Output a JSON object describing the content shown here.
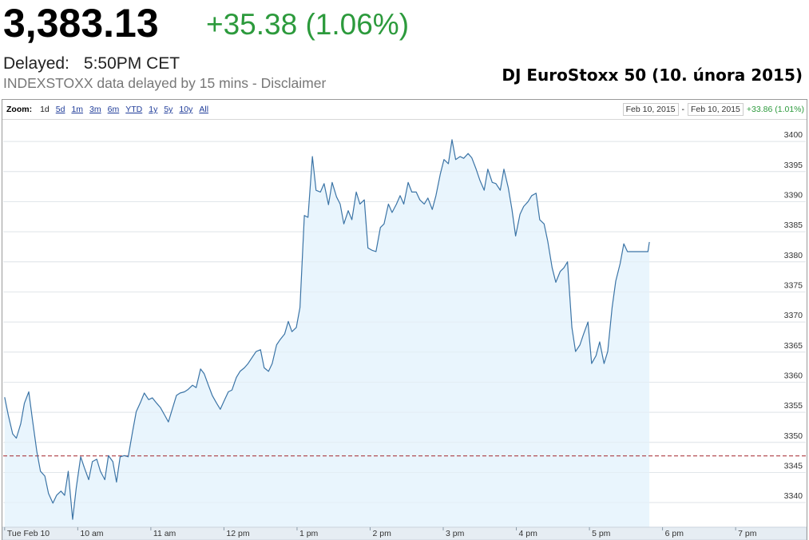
{
  "ui": {
    "price": "3,383.13",
    "change": "+35.38 (1.06%)",
    "delayed_label": "Delayed:",
    "delayed_time": "5:50PM CET",
    "disclaimer": "INDEXSTOXX data delayed by 15 mins - Disclaimer",
    "zoom_label": "Zoom:",
    "zoom_options": [
      "1d",
      "5d",
      "1m",
      "3m",
      "6m",
      "YTD",
      "1y",
      "5y",
      "10y",
      "All"
    ],
    "range_start": "Feb 10, 2015",
    "range_sep": "-",
    "range_end": "Feb 10, 2015",
    "range_change": "+33.86 (1.01%)"
  },
  "chart_data": {
    "type": "line",
    "title": "DJ EuroStoxx 50 (10. února 2015)",
    "color": "#3b74a6",
    "fill_color": "#e9f5fd",
    "reference_line": 3347.75,
    "reference_color": "#a3242c",
    "grid": true,
    "xlim": [
      8.98,
      19.96
    ],
    "xticks": [
      {
        "value": 9,
        "label": "Tue Feb 10"
      },
      {
        "value": 10,
        "label": "10 am"
      },
      {
        "value": 11,
        "label": "11 am"
      },
      {
        "value": 12,
        "label": "12 pm"
      },
      {
        "value": 13,
        "label": "1 pm"
      },
      {
        "value": 14,
        "label": "2 pm"
      },
      {
        "value": 15,
        "label": "3 pm"
      },
      {
        "value": 16,
        "label": "4 pm"
      },
      {
        "value": 17,
        "label": "5 pm"
      },
      {
        "value": 18,
        "label": "6 pm"
      },
      {
        "value": 19,
        "label": "7 pm"
      }
    ],
    "ylim": [
      3335.9,
      3403.6
    ],
    "yticks": [
      3340,
      3345,
      3350,
      3355,
      3360,
      3365,
      3370,
      3375,
      3380,
      3385,
      3390,
      3395,
      3400
    ],
    "x": [
      9.0,
      9.05,
      9.11,
      9.16,
      9.22,
      9.27,
      9.33,
      9.38,
      9.44,
      9.49,
      9.55,
      9.6,
      9.66,
      9.71,
      9.77,
      9.82,
      9.87,
      9.93,
      9.98,
      10.04,
      10.09,
      10.15,
      10.2,
      10.26,
      10.31,
      10.37,
      10.42,
      10.48,
      10.53,
      10.58,
      10.64,
      10.69,
      10.75,
      10.8,
      10.86,
      10.91,
      10.97,
      11.02,
      11.08,
      11.13,
      11.19,
      11.24,
      11.3,
      11.35,
      11.4,
      11.46,
      11.51,
      11.57,
      11.62,
      11.68,
      11.73,
      11.79,
      11.84,
      11.9,
      11.95,
      12.01,
      12.06,
      12.11,
      12.17,
      12.22,
      12.28,
      12.33,
      12.39,
      12.44,
      12.5,
      12.55,
      12.61,
      12.66,
      12.72,
      12.77,
      12.83,
      12.88,
      12.93,
      12.99,
      13.04,
      13.1,
      13.15,
      13.21,
      13.26,
      13.32,
      13.37,
      13.43,
      13.48,
      13.54,
      13.59,
      13.64,
      13.7,
      13.75,
      13.81,
      13.86,
      13.92,
      13.97,
      14.03,
      14.08,
      14.14,
      14.19,
      14.25,
      14.3,
      14.36,
      14.41,
      14.46,
      14.52,
      14.57,
      14.63,
      14.68,
      14.74,
      14.79,
      14.85,
      14.9,
      14.96,
      15.01,
      15.07,
      15.12,
      15.17,
      15.23,
      15.28,
      15.34,
      15.39,
      15.45,
      15.5,
      15.56,
      15.61,
      15.67,
      15.72,
      15.78,
      15.83,
      15.89,
      15.94,
      15.99,
      16.05,
      16.1,
      16.16,
      16.21,
      16.27,
      16.32,
      16.38,
      16.43,
      16.49,
      16.54,
      16.6,
      16.65,
      16.7,
      16.76,
      16.81,
      16.87,
      16.92,
      16.98,
      17.03,
      17.09,
      17.14,
      17.2,
      17.25,
      17.31,
      17.36,
      17.42,
      17.47,
      17.52,
      17.58,
      17.63,
      17.69,
      17.74,
      17.8,
      17.82
    ],
    "values": [
      3357.5,
      3354.5,
      3351.4,
      3350.7,
      3353.1,
      3356.5,
      3358.4,
      3353.8,
      3348.5,
      3345.2,
      3344.4,
      3341.5,
      3339.9,
      3341.2,
      3341.9,
      3341.2,
      3345.2,
      3337.2,
      3342.5,
      3347.6,
      3345.8,
      3343.8,
      3346.8,
      3347.2,
      3345.2,
      3343.8,
      3347.8,
      3346.8,
      3343.4,
      3347.6,
      3347.8,
      3347.6,
      3351.8,
      3355.1,
      3356.7,
      3358.2,
      3357.1,
      3357.4,
      3356.5,
      3355.8,
      3354.5,
      3353.4,
      3355.8,
      3357.8,
      3358.2,
      3358.4,
      3358.8,
      3359.5,
      3359.1,
      3362.2,
      3361.4,
      3359.4,
      3357.8,
      3356.5,
      3355.5,
      3357.1,
      3358.4,
      3358.7,
      3360.8,
      3361.8,
      3362.4,
      3363.1,
      3364.2,
      3365.1,
      3365.4,
      3362.4,
      3361.8,
      3363.1,
      3366.2,
      3367.1,
      3368.0,
      3370.1,
      3368.4,
      3369.1,
      3372.4,
      3387.7,
      3387.4,
      3397.5,
      3391.9,
      3391.6,
      3393.0,
      3389.5,
      3393.2,
      3390.8,
      3389.6,
      3386.3,
      3388.5,
      3387.0,
      3391.6,
      3389.6,
      3390.3,
      3382.3,
      3381.9,
      3381.7,
      3385.7,
      3386.3,
      3389.6,
      3388.2,
      3389.6,
      3391.0,
      3389.6,
      3393.2,
      3391.6,
      3391.6,
      3390.3,
      3389.6,
      3390.6,
      3388.7,
      3391.0,
      3394.6,
      3397.0,
      3396.3,
      3400.3,
      3397.0,
      3397.5,
      3397.2,
      3398.0,
      3397.3,
      3395.4,
      3393.6,
      3391.9,
      3395.4,
      3393.2,
      3393.0,
      3391.9,
      3395.4,
      3392.3,
      3388.7,
      3384.3,
      3387.9,
      3389.2,
      3390.0,
      3391.0,
      3391.4,
      3387.0,
      3386.3,
      3383.4,
      3379.0,
      3376.6,
      3378.4,
      3379.0,
      3380.0,
      3369.1,
      3365.1,
      3366.2,
      3368.0,
      3370.0,
      3363.1,
      3364.4,
      3366.7,
      3363.1,
      3365.1,
      3372.4,
      3376.8,
      3379.7,
      3383.0,
      3381.7,
      3381.7,
      3381.7,
      3381.7,
      3381.7,
      3381.7,
      3383.3
    ]
  }
}
